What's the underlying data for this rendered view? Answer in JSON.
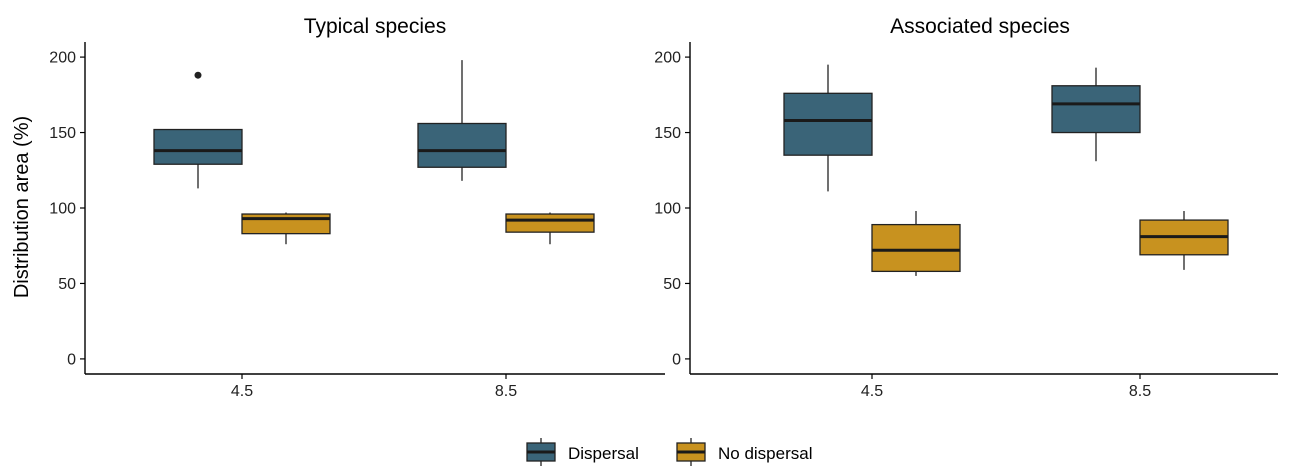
{
  "colors": {
    "Dispersal": "#3a6478",
    "No dispersal": "#c8921f"
  },
  "chart_data": [
    {
      "type": "box",
      "title": "Typical species",
      "ylabel": "Distribution area (%)",
      "xlabel": "",
      "ylim": [
        -10,
        210
      ],
      "yticks": [
        0,
        50,
        100,
        150,
        200
      ],
      "categories": [
        "4.5",
        "8.5"
      ],
      "series": [
        {
          "name": "Dispersal",
          "boxes": [
            {
              "min": 113,
              "q1": 129,
              "median": 138,
              "q3": 152,
              "max": 152,
              "outliers": [
                188
              ]
            },
            {
              "min": 118,
              "q1": 127,
              "median": 138,
              "q3": 156,
              "max": 198,
              "outliers": []
            }
          ]
        },
        {
          "name": "No dispersal",
          "boxes": [
            {
              "min": 76,
              "q1": 83,
              "median": 93,
              "q3": 96,
              "max": 97,
              "outliers": []
            },
            {
              "min": 76,
              "q1": 84,
              "median": 92,
              "q3": 96,
              "max": 97,
              "outliers": []
            }
          ]
        }
      ]
    },
    {
      "type": "box",
      "title": "Associated species",
      "ylabel": "",
      "xlabel": "",
      "ylim": [
        -10,
        210
      ],
      "yticks": [
        0,
        50,
        100,
        150,
        200
      ],
      "categories": [
        "4.5",
        "8.5"
      ],
      "series": [
        {
          "name": "Dispersal",
          "boxes": [
            {
              "min": 111,
              "q1": 135,
              "median": 158,
              "q3": 176,
              "max": 195,
              "outliers": []
            },
            {
              "min": 131,
              "q1": 150,
              "median": 169,
              "q3": 181,
              "max": 193,
              "outliers": []
            }
          ]
        },
        {
          "name": "No dispersal",
          "boxes": [
            {
              "min": 55,
              "q1": 58,
              "median": 72,
              "q3": 89,
              "max": 98,
              "outliers": []
            },
            {
              "min": 59,
              "q1": 69,
              "median": 81,
              "q3": 92,
              "max": 98,
              "outliers": []
            }
          ]
        }
      ]
    }
  ],
  "legend": {
    "position": "bottom",
    "items": [
      "Dispersal",
      "No dispersal"
    ]
  }
}
